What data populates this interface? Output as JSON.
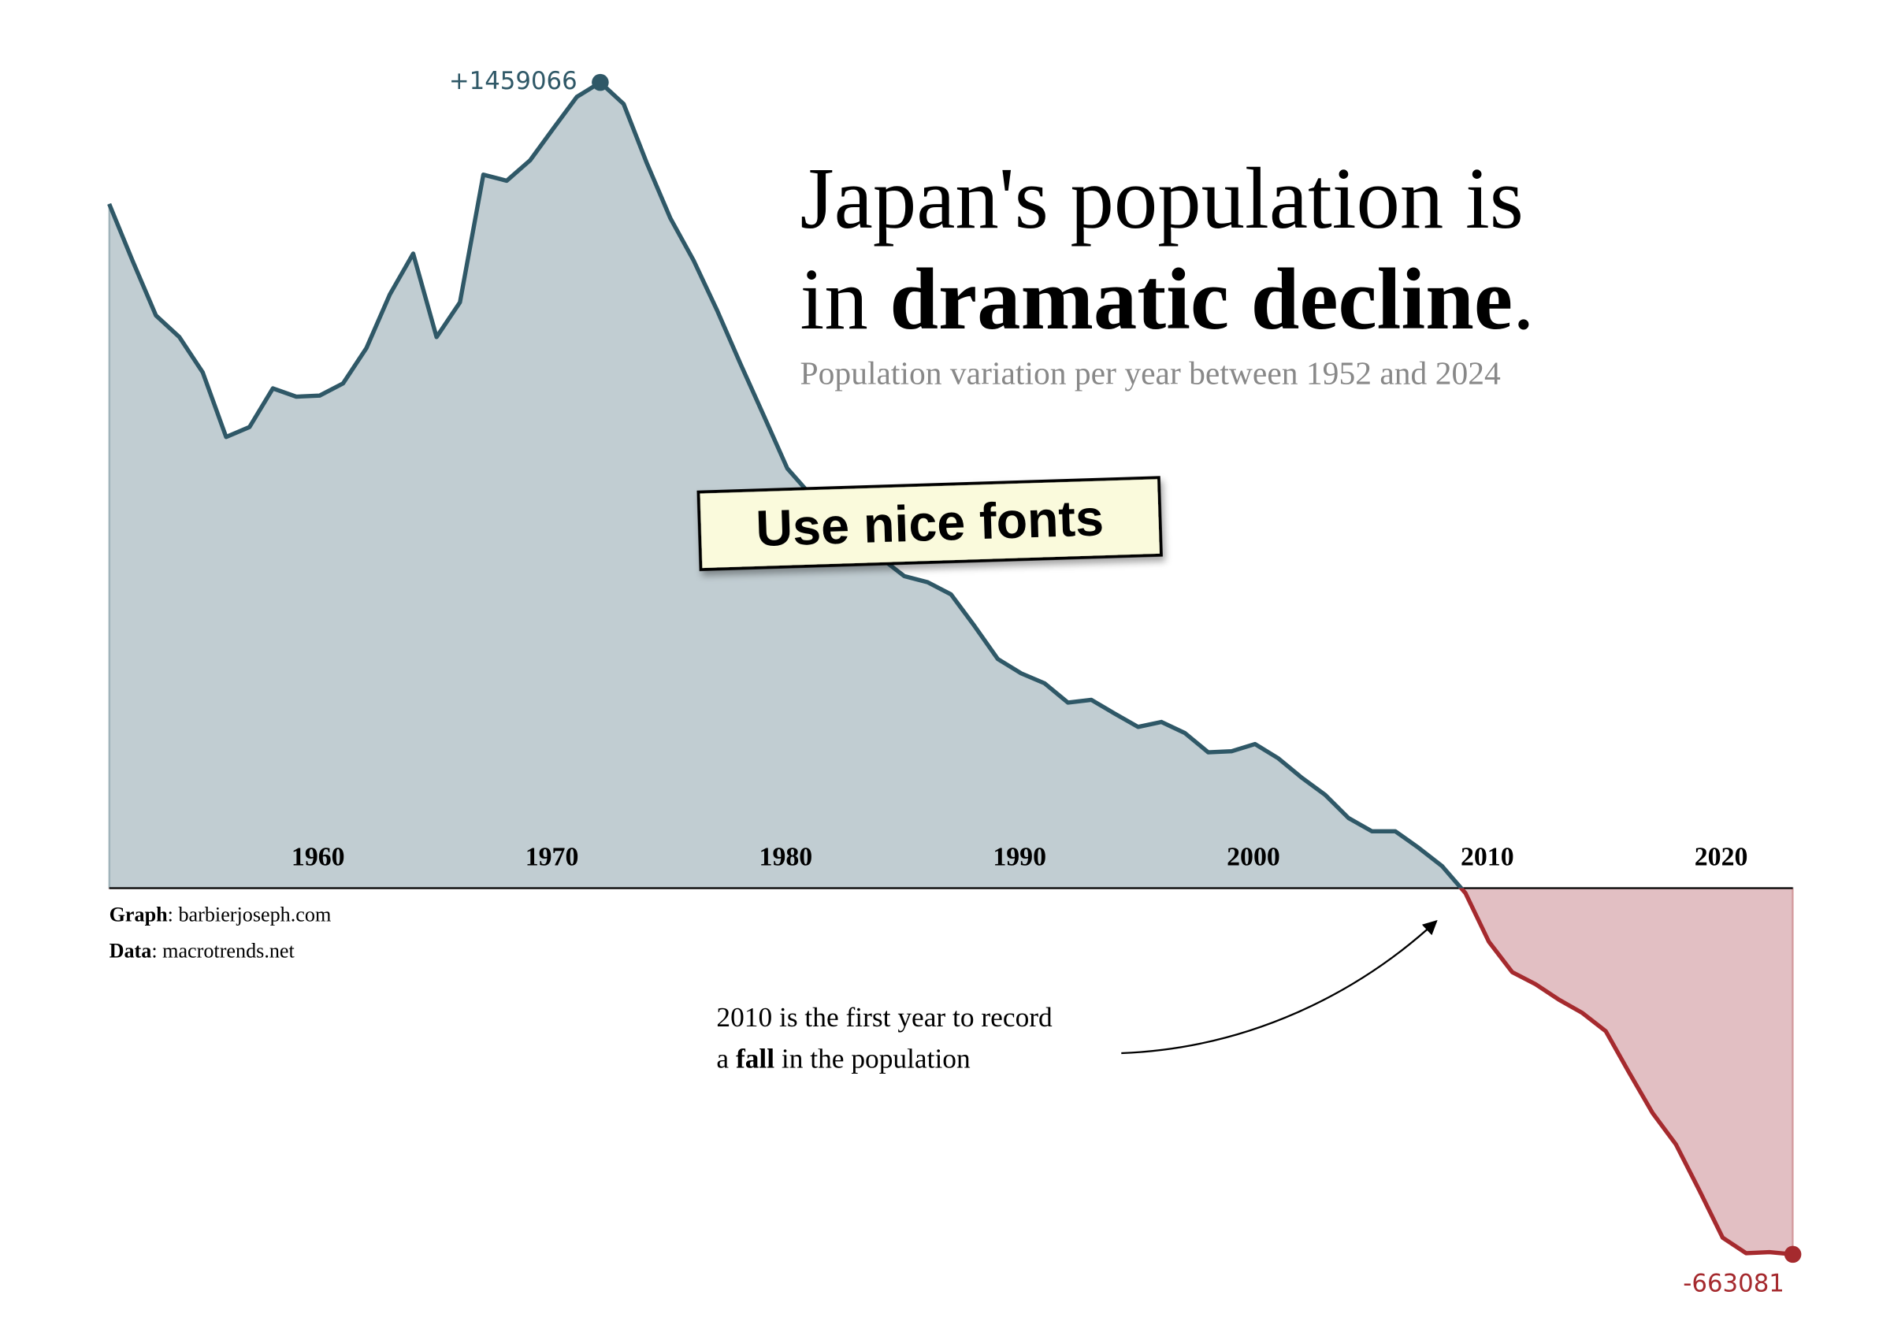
{
  "chart_data": {
    "type": "area",
    "title": {
      "line1": "Japan's population is",
      "line2_before": "in ",
      "line2_bold": "dramatic decline",
      "line2_after": "."
    },
    "subtitle": "Population variation per year between 1952 and 2024",
    "sticker": "Use nice fonts",
    "credits": {
      "graph_label": "Graph",
      "graph_text": ": barbierjoseph.com",
      "data_label": "Data",
      "data_text": ": macrotrends.net"
    },
    "annotation": {
      "line1": "2010 is the first year to record",
      "line2_before": "a ",
      "line2_bold": "fall",
      "line2_after": " in the population"
    },
    "x": [
      1952,
      1953,
      1954,
      1955,
      1956,
      1957,
      1958,
      1959,
      1960,
      1961,
      1962,
      1963,
      1964,
      1965,
      1966,
      1967,
      1968,
      1969,
      1970,
      1971,
      1972,
      1973,
      1974,
      1975,
      1976,
      1977,
      1978,
      1979,
      1980,
      1981,
      1982,
      1983,
      1984,
      1985,
      1986,
      1987,
      1988,
      1989,
      1990,
      1991,
      1992,
      1993,
      1994,
      1995,
      1996,
      1997,
      1998,
      1999,
      2000,
      2001,
      2002,
      2003,
      2004,
      2005,
      2006,
      2007,
      2008,
      2009,
      2010,
      2011,
      2012,
      2013,
      2014,
      2015,
      2016,
      2017,
      2018,
      2019,
      2020,
      2021,
      2022,
      2023,
      2024
    ],
    "values": [
      1239000,
      1136000,
      1037000,
      998000,
      934000,
      817000,
      835000,
      905000,
      890000,
      892000,
      914000,
      978000,
      1075000,
      1149000,
      998000,
      1061000,
      1292000,
      1281000,
      1318000,
      1376000,
      1433000,
      1459066,
      1420000,
      1312000,
      1213000,
      1136000,
      1046000,
      949000,
      855000,
      760000,
      712000,
      664000,
      631000,
      598000,
      565000,
      554000,
      532000,
      475000,
      415000,
      389000,
      371000,
      336000,
      341000,
      316000,
      292000,
      301000,
      281000,
      246000,
      248000,
      261000,
      235000,
      200000,
      169000,
      127000,
      103000,
      103000,
      73000,
      40000,
      -9000,
      -97000,
      -152000,
      -174000,
      -202000,
      -226000,
      -259000,
      -334000,
      -407000,
      -464000,
      -547000,
      -633000,
      -661000,
      -659000,
      -663081
    ],
    "value_labels": [
      null,
      null,
      null,
      null,
      null,
      null,
      null,
      null,
      null,
      null,
      null,
      null,
      null,
      null,
      null,
      null,
      null,
      null,
      null,
      null,
      null,
      "+1459066",
      null,
      null,
      null,
      null,
      null,
      null,
      null,
      null,
      null,
      null,
      null,
      null,
      null,
      null,
      null,
      null,
      null,
      null,
      null,
      null,
      null,
      null,
      null,
      null,
      null,
      null,
      null,
      null,
      null,
      null,
      null,
      null,
      null,
      null,
      null,
      null,
      null,
      null,
      null,
      null,
      null,
      null,
      null,
      null,
      null,
      null,
      null,
      null,
      null,
      null,
      "-663081"
    ],
    "color": "#2f5867",
    "fill": "#c1cdd2",
    "negative_color": "#a52a2e",
    "negative_fill": "#e2bfc3",
    "xlim": [
      1952,
      2024
    ],
    "xticks": [
      1960,
      1970,
      1980,
      1990,
      2000,
      2010,
      2020
    ],
    "ylim": [
      -663081,
      1459066
    ]
  }
}
